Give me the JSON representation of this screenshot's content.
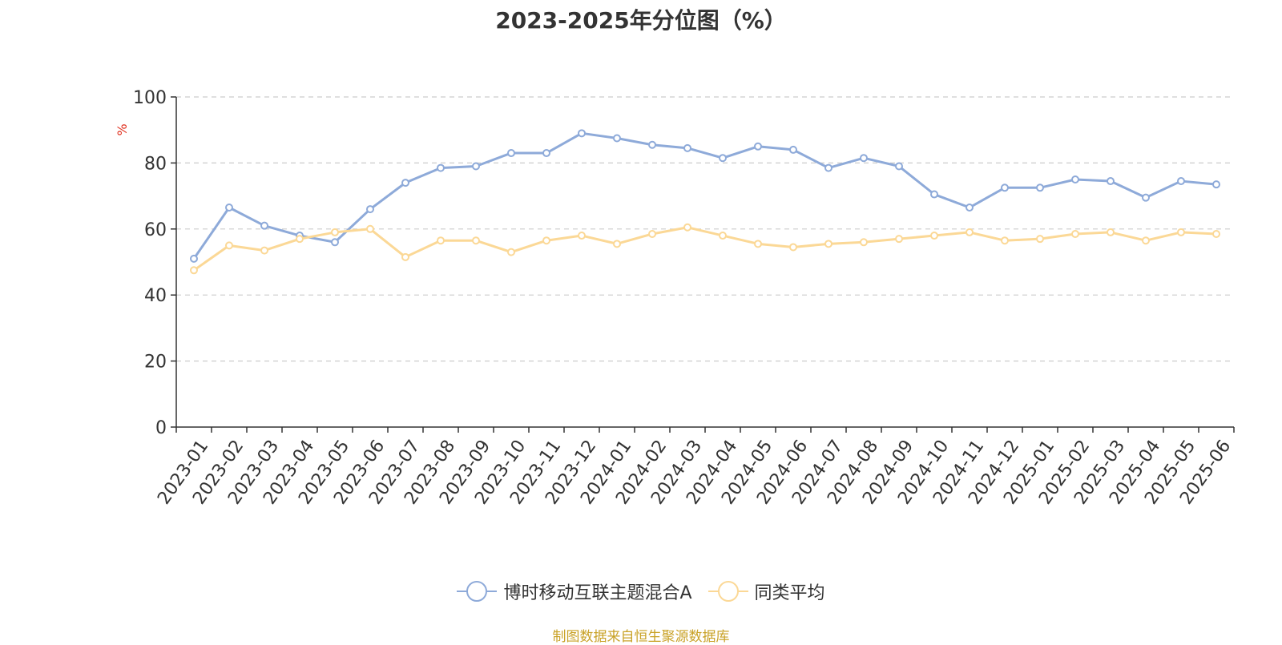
{
  "chart_data": {
    "type": "line",
    "title": "2023-2025年分位图（%）",
    "ylabel": "%",
    "xlabel": "",
    "ylim": [
      0,
      100
    ],
    "yticks": [
      0,
      20,
      40,
      60,
      80,
      100
    ],
    "grid": true,
    "legend_position": "bottom",
    "categories": [
      "2023-01",
      "2023-02",
      "2023-03",
      "2023-04",
      "2023-05",
      "2023-06",
      "2023-07",
      "2023-08",
      "2023-09",
      "2023-10",
      "2023-11",
      "2023-12",
      "2024-01",
      "2024-02",
      "2024-03",
      "2024-04",
      "2024-05",
      "2024-06",
      "2024-07",
      "2024-08",
      "2024-09",
      "2024-10",
      "2024-11",
      "2024-12",
      "2025-01",
      "2025-02",
      "2025-03",
      "2025-04",
      "2025-05",
      "2025-06"
    ],
    "series": [
      {
        "name": "博时移动互联主题混合A",
        "color": "#8eaad9",
        "values": [
          51,
          66.5,
          61,
          58,
          56,
          66,
          74,
          78.5,
          79,
          83,
          83,
          89,
          87.5,
          85.5,
          84.5,
          81.5,
          85,
          84,
          78.5,
          81.5,
          79,
          70.5,
          66.5,
          72.5,
          72.5,
          75,
          74.5,
          69.5,
          74.5,
          73.5
        ]
      },
      {
        "name": "同类平均",
        "color": "#fbd896",
        "values": [
          47.5,
          55,
          53.5,
          57,
          59,
          60,
          51.5,
          56.5,
          56.5,
          53,
          56.5,
          58,
          55.5,
          58.5,
          60.5,
          58,
          55.5,
          54.5,
          55.5,
          56,
          57,
          58,
          59,
          56.5,
          57,
          58.5,
          59,
          56.5,
          59,
          58.5
        ]
      }
    ]
  },
  "source_text": "制图数据来自恒生聚源数据库"
}
